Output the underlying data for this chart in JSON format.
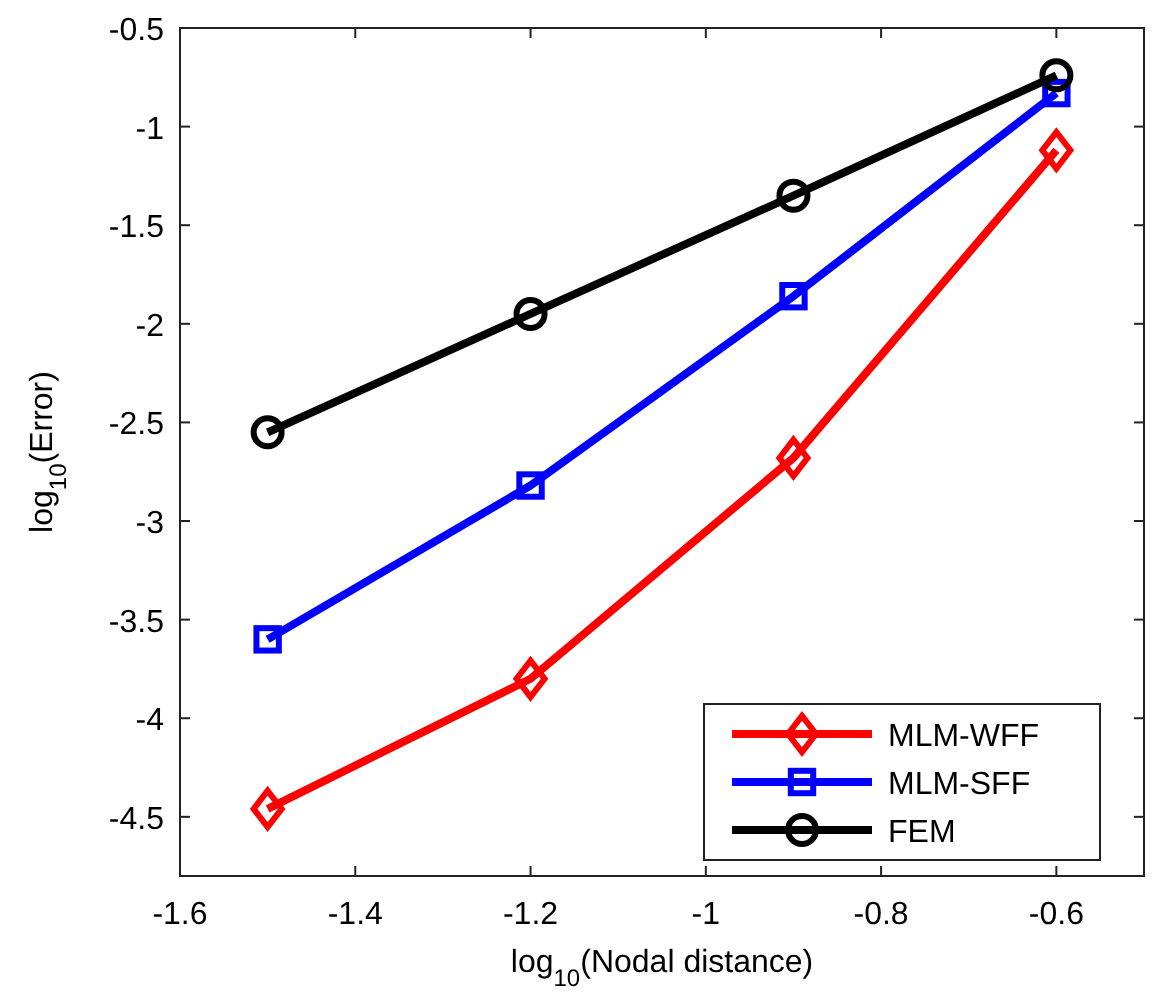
{
  "chart_data": {
    "type": "line",
    "xlabel": "log$_{10}$(Nodal distance)",
    "ylabel": "log$_{10}$(Error)",
    "x": [
      -1.5,
      -1.2,
      -0.9,
      -0.6
    ],
    "series": [
      {
        "name": "MLM-WFF",
        "color": "#ff0000",
        "marker": "diamond",
        "values": [
          -4.46,
          -3.8,
          -2.68,
          -1.12
        ]
      },
      {
        "name": "MLM-SFF",
        "color": "#0000ff",
        "marker": "square",
        "values": [
          -3.6,
          -2.82,
          -1.86,
          -0.83
        ]
      },
      {
        "name": "FEM",
        "color": "#000000",
        "marker": "circle",
        "values": [
          -2.55,
          -1.95,
          -1.35,
          -0.74
        ]
      }
    ],
    "xlim": [
      -1.6,
      -0.5
    ],
    "xticks": [
      -1.6,
      -1.4,
      -1.2,
      -1,
      -0.8,
      -0.6
    ],
    "ylim": [
      -4.8,
      -0.5
    ],
    "yticks": [
      -4.5,
      -4,
      -3.5,
      -3,
      -2.5,
      -2,
      -1.5,
      -1,
      -0.5
    ],
    "grid": false,
    "legend": "bottom right",
    "line_style": "solid"
  }
}
